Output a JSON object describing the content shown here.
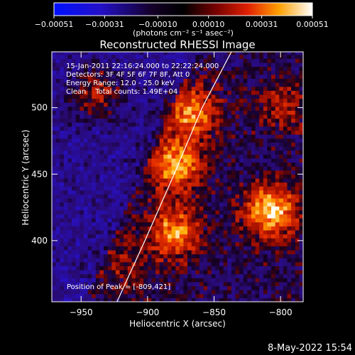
{
  "chart_data": {
    "type": "heatmap",
    "title": "Reconstructed RHESSI Image",
    "xlabel": "Heliocentric X (arcsec)",
    "ylabel": "Heliocentric Y (arcsec)",
    "xlim": [
      -972,
      -783
    ],
    "ylim": [
      354,
      542
    ],
    "x_ticks": [
      -950,
      -900,
      -850,
      -800
    ],
    "y_ticks": [
      400,
      450,
      500
    ],
    "x_tick_labels": [
      "−950",
      "−900",
      "−850",
      "−800"
    ],
    "y_tick_labels": [
      "400",
      "450",
      "500"
    ],
    "colorbar": {
      "range": [
        -0.00051,
        0.00051
      ],
      "ticks": [
        -0.00051,
        -0.00031,
        -0.0001,
        0.0001,
        0.00031,
        0.00051
      ],
      "tick_labels": [
        "−0.00051",
        "−0.00031",
        "−0.00010",
        "0.00010",
        "0.00031",
        "0.00051"
      ],
      "unit_label": "(photons cm⁻² s⁻¹ asec⁻²)",
      "colormap": "rhessi-blue-black-red-yellow-white"
    },
    "annotations": [
      "15-Jan-2011 22:16:24.000 to 22:22:24.000",
      "Detectors: 3F 4F 5F 6F 7F 8F, Att 0",
      "Energy Range: 12.0 - 25.0 keV",
      "Clean    Total counts: 1.49E+04"
    ],
    "peak_label": "Position of Peak = [-809,421]",
    "peak_position": [
      -809,
      421
    ],
    "limb": {
      "type": "solar-limb-curve",
      "points": [
        [
          -923,
          354
        ],
        [
          -902,
          400
        ],
        [
          -880,
          450
        ],
        [
          -859,
          500
        ],
        [
          -837,
          542
        ]
      ]
    },
    "bright_sources": [
      {
        "x": -940,
        "y": 510,
        "intensity": 0.0003
      },
      {
        "x": -880,
        "y": 455,
        "intensity": 0.00045
      },
      {
        "x": -868,
        "y": 495,
        "intensity": 0.0004
      },
      {
        "x": -882,
        "y": 405,
        "intensity": 0.00042
      },
      {
        "x": -809,
        "y": 421,
        "intensity": 0.00051
      },
      {
        "x": -800,
        "y": 500,
        "intensity": 0.0002
      },
      {
        "x": -920,
        "y": 380,
        "intensity": 0.00015
      }
    ]
  },
  "footer": {
    "date": "8-May-2022 15:54"
  }
}
